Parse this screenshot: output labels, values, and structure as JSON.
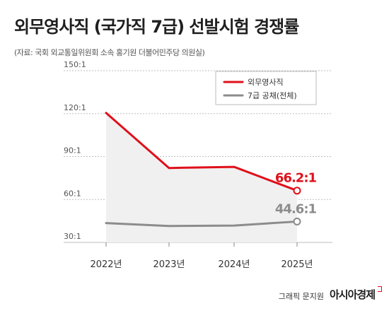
{
  "header": {
    "title": "외무영사직 (국가직 7급) 선발시험 경쟁률",
    "source": "(자료: 국회 외교통일위원회 소속 홍기원 더불어민주당 의원실)"
  },
  "footer": {
    "credit": "그래픽 문지원",
    "brand": "아시아경제"
  },
  "colors": {
    "series_primary": "#e0101a",
    "series_secondary": "#8c8c8c",
    "area_fill": "#f0f0f0",
    "grid": "#bdbdbd"
  },
  "chart_data": {
    "type": "line",
    "x": [
      "2022년",
      "2023년",
      "2024년",
      "2025년"
    ],
    "ylim": [
      30,
      150
    ],
    "yticks": [
      30,
      60,
      90,
      120,
      150
    ],
    "ytick_labels": [
      "30:1",
      "60:1",
      "90:1",
      "120:1",
      "150:1"
    ],
    "grid": "horizontal",
    "legend_position": "top-right",
    "series": [
      {
        "name": "외무영사직",
        "values": [
          120.5,
          82,
          82.8,
          66.2
        ],
        "color": "#e0101a",
        "label": "66.2:1"
      },
      {
        "name": "7급 공채(전체)",
        "values": [
          43.5,
          41.5,
          41.8,
          44.6
        ],
        "color": "#8c8c8c",
        "label": "44.6:1"
      }
    ]
  }
}
